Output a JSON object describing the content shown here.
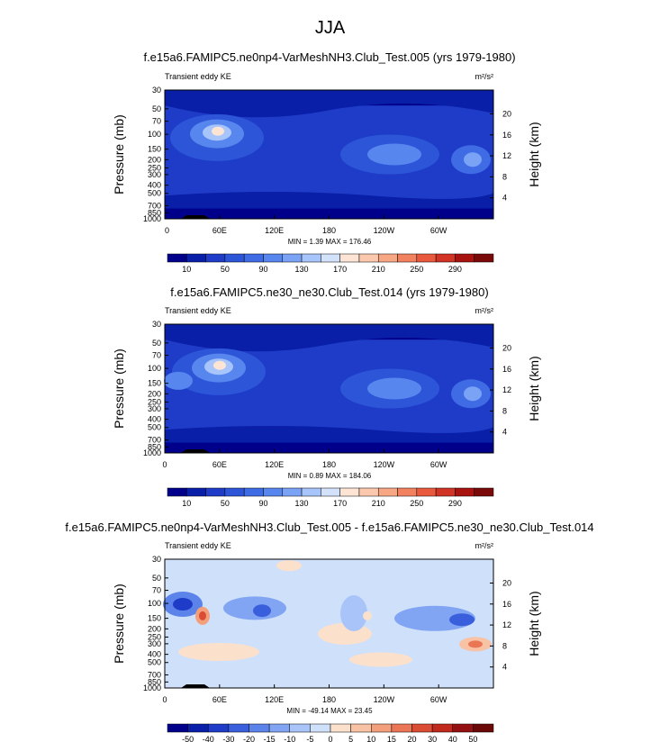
{
  "figure_title": "JJA",
  "chart_data": [
    {
      "type": "heatmap",
      "title": "f.e15a6.FAMIPC5.ne0np4-VarMeshNH3.Club_Test.005 (yrs 1979-1980)",
      "left_label": "Transient eddy KE",
      "units": "m²/s²",
      "ylabel": "Pressure (mb)",
      "y2label": "Height (km)",
      "x_ticks": [
        "0",
        "60E",
        "120E",
        "180",
        "120W",
        "60W"
      ],
      "y_ticks": [
        "30",
        "50",
        "70",
        "100",
        "150",
        "200",
        "250",
        "300",
        "400",
        "500",
        "700",
        "850",
        "1000"
      ],
      "height_ticks": [
        "20",
        "16",
        "12",
        "8",
        "4"
      ],
      "min_max": "MIN =   1.39  MAX = 176.46",
      "colorbar_labels": [
        "10",
        "50",
        "90",
        "130",
        "170",
        "210",
        "250",
        "290"
      ]
    },
    {
      "type": "heatmap",
      "title": "f.e15a6.FAMIPC5.ne30_ne30.Club_Test.014 (yrs 1979-1980)",
      "left_label": "Transient eddy KE",
      "units": "m²/s²",
      "ylabel": "Pressure (mb)",
      "y2label": "Height (km)",
      "x_ticks": [
        "0",
        "60E",
        "120E",
        "180",
        "120W",
        "60W"
      ],
      "y_ticks": [
        "30",
        "50",
        "70",
        "100",
        "150",
        "200",
        "250",
        "300",
        "400",
        "500",
        "700",
        "850",
        "1000"
      ],
      "height_ticks": [
        "20",
        "16",
        "12",
        "8",
        "4"
      ],
      "min_max": "MIN =   0.89  MAX = 184.06",
      "colorbar_labels": [
        "10",
        "50",
        "90",
        "130",
        "170",
        "210",
        "250",
        "290"
      ]
    },
    {
      "type": "heatmap",
      "title": "f.e15a6.FAMIPC5.ne0np4-VarMeshNH3.Club_Test.005 - f.e15a6.FAMIPC5.ne30_ne30.Club_Test.014",
      "left_label": "Transient eddy KE",
      "units": "m²/s²",
      "ylabel": "Pressure (mb)",
      "y2label": "Height (km)",
      "x_ticks": [
        "0",
        "60E",
        "120E",
        "180",
        "120W",
        "60W"
      ],
      "y_ticks": [
        "30",
        "50",
        "70",
        "100",
        "150",
        "200",
        "250",
        "300",
        "400",
        "500",
        "700",
        "850",
        "1000"
      ],
      "height_ticks": [
        "20",
        "16",
        "12",
        "8",
        "4"
      ],
      "min_max": "MIN = -49.14  MAX =  23.45",
      "colorbar_labels": [
        "-50",
        "-40",
        "-30",
        "-20",
        "-15",
        "-10",
        "-5",
        "0",
        "5",
        "10",
        "15",
        "20",
        "30",
        "40",
        "50"
      ]
    }
  ]
}
